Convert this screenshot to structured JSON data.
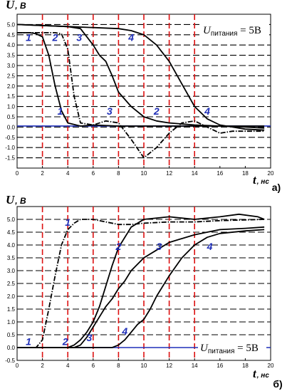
{
  "chart_data": [
    {
      "type": "line",
      "panel": "а)",
      "ylabel": "U",
      "yunit": ", В",
      "xlabel": "t",
      "xunit": ", нс",
      "xlim": [
        0,
        20
      ],
      "ylim": [
        -2.0,
        5.5
      ],
      "xticks": [
        0,
        2,
        4,
        6,
        8,
        10,
        12,
        14,
        16,
        18,
        20
      ],
      "yticks": [
        -1.5,
        -1.0,
        -0.5,
        0.0,
        0.5,
        1.0,
        1.5,
        2.0,
        2.5,
        3.0,
        3.5,
        4.0,
        4.5,
        5.0
      ],
      "ytick_labels": [
        "-1.5",
        "-1.0",
        "-0.5",
        "0.0",
        "0.5",
        "1.0",
        "1.5",
        "2.0",
        "2.5",
        "3.0",
        "3.5",
        "4.0",
        "4.5",
        "5.0"
      ],
      "xtick_labels": [
        "0",
        "2",
        "4",
        "6",
        "8",
        "10",
        "12",
        "14",
        "16",
        "18",
        "20"
      ],
      "marked_times": [
        2,
        4,
        6,
        8,
        10,
        12,
        14
      ],
      "supply_label": {
        "main": "U",
        "sub": "питания",
        "tail": " = 5В"
      },
      "reference_level": 0.05,
      "series": [
        {
          "id": "1",
          "dash": false,
          "x": [
            0,
            1,
            1.5,
            2,
            2.5,
            3,
            3.5,
            4,
            5,
            6,
            8,
            10,
            12,
            14,
            16,
            19.5
          ],
          "y": [
            4.6,
            4.6,
            4.55,
            4.4,
            3.5,
            2.0,
            0.8,
            0.2,
            0.05,
            0.1,
            0.05,
            0.05,
            0.05,
            0.05,
            0.05,
            0.05
          ]
        },
        {
          "id": "2",
          "dash": true,
          "x": [
            0,
            2,
            3,
            3.5,
            4,
            4.5,
            5,
            6,
            7,
            8,
            9,
            10,
            11,
            12,
            13,
            14,
            15,
            16,
            17,
            18,
            19.5
          ],
          "y": [
            4.6,
            4.6,
            4.6,
            4.55,
            3.8,
            1.5,
            0.2,
            0.1,
            0.3,
            0.2,
            -0.6,
            -1.5,
            -1.0,
            -0.3,
            0.2,
            0.3,
            0.0,
            -0.3,
            -0.2,
            -0.2,
            -0.2
          ]
        },
        {
          "id": "3",
          "dash": false,
          "x": [
            0,
            2,
            4,
            5,
            5.5,
            6,
            6.5,
            7,
            7.5,
            8,
            9,
            10,
            11,
            12,
            14,
            16,
            18,
            19.5
          ],
          "y": [
            5.0,
            4.95,
            4.9,
            4.8,
            4.4,
            4.0,
            3.5,
            3.2,
            2.5,
            1.7,
            1.0,
            0.5,
            0.3,
            0.2,
            0.1,
            0.05,
            0.0,
            -0.05
          ]
        },
        {
          "id": "4",
          "dash": false,
          "x": [
            0,
            2,
            4,
            6,
            8,
            9,
            10,
            11,
            12,
            13,
            14,
            15,
            16,
            17,
            18,
            19.5
          ],
          "y": [
            5.0,
            4.95,
            4.9,
            4.85,
            4.8,
            4.7,
            4.5,
            4.0,
            3.2,
            2.1,
            1.0,
            0.4,
            0.1,
            0.0,
            -0.1,
            -0.15
          ]
        }
      ],
      "annotations": [
        {
          "text": "1",
          "x": 0.9,
          "y": 4.2
        },
        {
          "text": "2",
          "x": 3.0,
          "y": 4.2
        },
        {
          "text": "3",
          "x": 4.9,
          "y": 4.2
        },
        {
          "text": "4",
          "x": 9.0,
          "y": 4.2
        },
        {
          "text": "1",
          "x": 3.4,
          "y": 0.6
        },
        {
          "text": "3",
          "x": 7.3,
          "y": 0.6
        },
        {
          "text": "2",
          "x": 11.0,
          "y": 0.6
        },
        {
          "text": "4",
          "x": 15.0,
          "y": 0.6
        }
      ]
    },
    {
      "type": "line",
      "panel": "б)",
      "ylabel": "U",
      "yunit": ", В",
      "xlabel": "t",
      "xunit": ", нс",
      "xlim": [
        0,
        20
      ],
      "ylim": [
        -0.5,
        5.5
      ],
      "xticks": [
        0,
        2,
        4,
        6,
        8,
        10,
        12,
        14,
        16,
        18,
        20
      ],
      "yticks": [
        -0.5,
        0.0,
        0.5,
        1.0,
        1.5,
        2.0,
        2.5,
        3.0,
        3.5,
        4.0,
        4.5,
        5.0
      ],
      "ytick_labels": [
        "-0.5",
        "0.0",
        "0.5",
        "1.0",
        "1.5",
        "2.0",
        "2.5",
        "3.0",
        "3.5",
        "4.0",
        "4.5",
        "5.0"
      ],
      "xtick_labels": [
        "0",
        "2",
        "4",
        "6",
        "8",
        "10",
        "12",
        "14",
        "16",
        "18",
        "20"
      ],
      "marked_times": [
        2,
        4,
        6,
        8,
        10,
        12,
        14
      ],
      "supply_label": {
        "main": "U",
        "sub": "питания",
        "tail": " = 5В"
      },
      "reference_level": 0.0,
      "series": [
        {
          "id": "1",
          "dash": true,
          "x": [
            0,
            1.5,
            2,
            2.5,
            3,
            3.5,
            4,
            4.5,
            5,
            6,
            7,
            8,
            9,
            10,
            12,
            14,
            16,
            19.5
          ],
          "y": [
            0.0,
            0.0,
            0.3,
            1.5,
            2.8,
            4.0,
            4.6,
            4.85,
            5.0,
            5.0,
            4.9,
            4.8,
            4.8,
            4.85,
            4.9,
            4.9,
            4.95,
            5.0
          ]
        },
        {
          "id": "2",
          "dash": false,
          "x": [
            0,
            4,
            4.5,
            5,
            5.5,
            6,
            6.5,
            7,
            7.5,
            8,
            9,
            10,
            12,
            14,
            16,
            17.5,
            19,
            19.5
          ],
          "y": [
            0.0,
            0.0,
            0.1,
            0.3,
            0.6,
            1.0,
            1.6,
            2.4,
            3.2,
            3.9,
            4.7,
            5.0,
            5.1,
            5.0,
            5.1,
            5.2,
            5.1,
            5.0
          ]
        },
        {
          "id": "3",
          "dash": false,
          "x": [
            0,
            4.5,
            5,
            5.5,
            6,
            6.5,
            7,
            7.5,
            8,
            8.5,
            9,
            10,
            11,
            12,
            14,
            16,
            18,
            19.5
          ],
          "y": [
            0.0,
            0.0,
            0.1,
            0.4,
            0.8,
            1.2,
            1.6,
            1.9,
            2.3,
            2.6,
            3.0,
            3.5,
            3.8,
            4.1,
            4.4,
            4.6,
            4.65,
            4.7
          ]
        },
        {
          "id": "4",
          "dash": false,
          "x": [
            0,
            7.5,
            8,
            8.5,
            9,
            9.5,
            10,
            10.5,
            11,
            12,
            13,
            14,
            15,
            16,
            18,
            19.5
          ],
          "y": [
            0.0,
            0.0,
            0.1,
            0.3,
            0.6,
            0.9,
            1.1,
            1.5,
            2.0,
            2.8,
            3.5,
            4.0,
            4.3,
            4.45,
            4.55,
            4.6
          ]
        }
      ],
      "annotations": [
        {
          "text": "1",
          "x": 4.0,
          "y": 4.75
        },
        {
          "text": "2",
          "x": 8.0,
          "y": 3.8
        },
        {
          "text": "3",
          "x": 11.2,
          "y": 3.8
        },
        {
          "text": "4",
          "x": 15.2,
          "y": 3.8
        },
        {
          "text": "1",
          "x": 0.9,
          "y": 0.1
        },
        {
          "text": "2",
          "x": 3.8,
          "y": 0.1
        },
        {
          "text": "3",
          "x": 5.7,
          "y": 0.25
        },
        {
          "text": "4",
          "x": 8.5,
          "y": 0.5
        }
      ]
    }
  ]
}
